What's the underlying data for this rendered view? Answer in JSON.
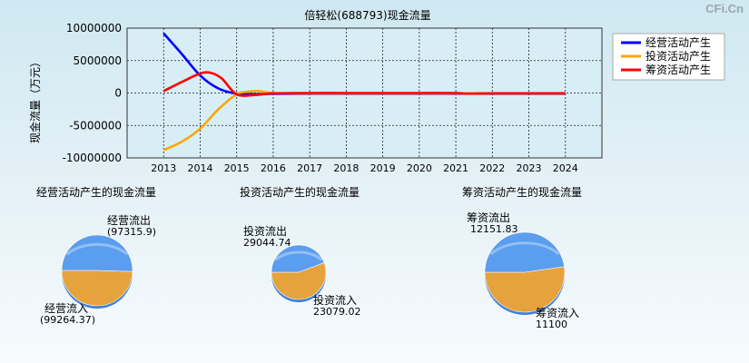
{
  "watermark": "CFi.Cn",
  "chart_data": [
    {
      "type": "line",
      "title": "倍轻松(688793)现金流量",
      "ylabel": "现金流量（万元）",
      "x": [
        2013,
        2014,
        2015,
        2016,
        2017,
        2018,
        2019,
        2020,
        2021,
        2022,
        2023,
        2024
      ],
      "xticks": [
        "2013",
        "2014",
        "2015",
        "2016",
        "2017",
        "2018",
        "2019",
        "2020",
        "2021",
        "2022",
        "2023",
        "2024"
      ],
      "yticks": [
        "10000000",
        "5000000",
        "0",
        "-5000000",
        "-10000000"
      ],
      "ylim": [
        -10000000,
        10000000
      ],
      "xlim": [
        2012,
        2025
      ],
      "grid": true,
      "legend_position": "top-right",
      "series": [
        {
          "name": "经营活动产生",
          "color": "#0000ff",
          "x": [
            2013,
            2013.5,
            2014,
            2014.5,
            2015,
            2015.5,
            2016,
            2017,
            2018,
            2019,
            2020,
            2021,
            2022,
            2023,
            2024
          ],
          "values": [
            9200000,
            6000000,
            2700000,
            700000,
            -100000,
            -180000,
            -120000,
            -100000,
            -100000,
            -100000,
            -100000,
            -100000,
            -100000,
            -100000,
            -100000
          ]
        },
        {
          "name": "投资活动产生",
          "color": "#ffa500",
          "x": [
            2013,
            2013.5,
            2014,
            2014.5,
            2015,
            2015.3,
            2015.6,
            2016,
            2017,
            2018,
            2019,
            2020,
            2021,
            2022,
            2023,
            2024
          ],
          "values": [
            -8800000,
            -7500000,
            -5500000,
            -2500000,
            -200000,
            200000,
            300000,
            0,
            -50000,
            -50000,
            -50000,
            -50000,
            -50000,
            -50000,
            -50000,
            -50000
          ]
        },
        {
          "name": "筹资活动产生",
          "color": "#ff0000",
          "x": [
            2013,
            2013.5,
            2014,
            2014.3,
            2014.6,
            2015,
            2015.5,
            2016,
            2017,
            2018,
            2019,
            2020,
            2021,
            2021.3,
            2022,
            2023,
            2024
          ],
          "values": [
            300000,
            1700000,
            3000000,
            3100000,
            2200000,
            -200000,
            -300000,
            -50000,
            0,
            0,
            0,
            0,
            0,
            -100000,
            -50000,
            -50000,
            -50000
          ]
        }
      ]
    },
    {
      "type": "pie",
      "title": "经营活动产生的现金流量",
      "slices": [
        {
          "label": "经营流出",
          "value_label": "(97315.9)",
          "value": 97315.9,
          "color": "#e6a23c"
        },
        {
          "label": "经营流入",
          "value_label": "(99264.37)",
          "value": 99264.37,
          "color": "#5b9def"
        }
      ]
    },
    {
      "type": "pie",
      "title": "投资活动产生的现金流量",
      "slices": [
        {
          "label": "投资流出",
          "value_label": "29044.74",
          "value": 29044.74,
          "color": "#e6a23c"
        },
        {
          "label": "投资流入",
          "value_label": "23079.02",
          "value": 23079.02,
          "color": "#5b9def"
        }
      ]
    },
    {
      "type": "pie",
      "title": "筹资活动产生的现金流量",
      "slices": [
        {
          "label": "筹资流出",
          "value_label": "12151.83",
          "value": 12151.83,
          "color": "#e6a23c"
        },
        {
          "label": "筹资流入",
          "value_label": "11100",
          "value": 11100,
          "color": "#5b9def"
        }
      ]
    }
  ]
}
